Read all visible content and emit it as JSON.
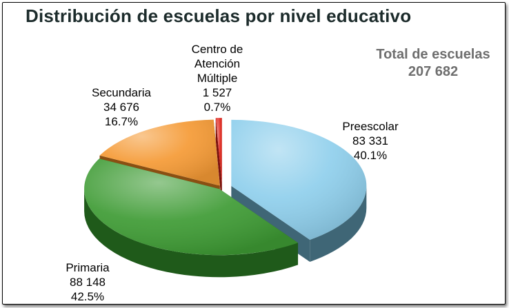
{
  "chart_data": {
    "type": "pie",
    "style": "3d",
    "title": "Distribución de escuelas por nivel educativo",
    "total_label": "Total de escuelas",
    "total_value": "207 682",
    "slices": [
      {
        "name": "Preescolar",
        "value": 83331,
        "value_label": "83 331",
        "percent_label": "40.1%",
        "color": "#8fcfec",
        "side_color": "#3f6676"
      },
      {
        "name": "Primaria",
        "value": 88148,
        "value_label": "88 148",
        "percent_label": "42.5%",
        "color": "#3e9b34",
        "side_color": "#1f5a1a"
      },
      {
        "name": "Secundaria",
        "value": 34676,
        "value_label": "34 676",
        "percent_label": "16.7%",
        "color": "#f59a35",
        "side_color": "#8a4f12"
      },
      {
        "name_lines": [
          "Centro de",
          "Atención",
          "Múltiple"
        ],
        "name": "Centro de Atención Múltiple",
        "value": 1527,
        "value_label": "1 527",
        "percent_label": "0.7%",
        "color": "#e0241b",
        "side_color": "#7a100b"
      }
    ]
  }
}
